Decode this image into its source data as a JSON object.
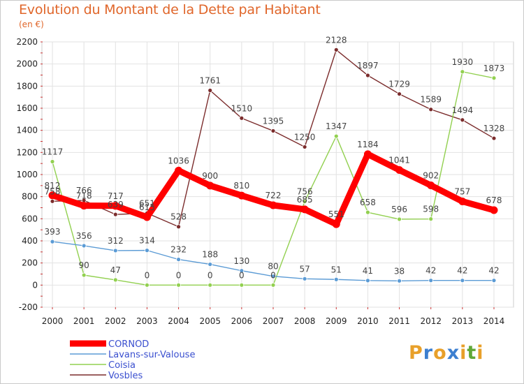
{
  "chart_data": {
    "type": "line",
    "title": "Evolution du Montant de la Dette par Habitant",
    "subtitle": "(en €)",
    "x": [
      "2000",
      "2001",
      "2002",
      "2003",
      "2004",
      "2005",
      "2006",
      "2007",
      "2008",
      "2009",
      "2010",
      "2011",
      "2012",
      "2013",
      "2014"
    ],
    "ylim": [
      -200,
      2200
    ],
    "yticks": [
      -200,
      0,
      200,
      400,
      600,
      800,
      1000,
      1200,
      1400,
      1600,
      1800,
      2000,
      2200
    ],
    "grid": true,
    "legend_position": "bottom-left",
    "series": [
      {
        "name": "CORNOD",
        "color": "#ff0000",
        "values": [
          812,
          718,
          717,
          615,
          1036,
          900,
          810,
          722,
          685,
          551,
          1184,
          1041,
          902,
          757,
          678
        ]
      },
      {
        "name": "Lavans-sur-Valouse",
        "color": "#5b9bd5",
        "values": [
          393,
          356,
          312,
          314,
          232,
          188,
          130,
          80,
          57,
          51,
          41,
          38,
          42,
          42,
          42
        ]
      },
      {
        "name": "Coisia",
        "color": "#92d050",
        "values": [
          1117,
          90,
          47,
          0,
          0,
          0,
          0,
          0,
          756,
          1347,
          658,
          596,
          598,
          1930,
          1873
        ]
      },
      {
        "name": "Vosbles",
        "color": "#7b2c2c",
        "values": [
          758,
          766,
          639,
          651,
          528,
          1761,
          1510,
          1395,
          1250,
          2128,
          1897,
          1729,
          1589,
          1494,
          1328
        ]
      }
    ]
  },
  "logo": {
    "text": "Proxiti",
    "letters": [
      "P",
      "r",
      "o",
      "x",
      "i",
      "t",
      "i"
    ],
    "colors": [
      "#e8a02a",
      "#3c7fd0",
      "#e8a02a",
      "#3c7fd0",
      "#e8a02a",
      "#60a838",
      "#e8a02a"
    ]
  }
}
